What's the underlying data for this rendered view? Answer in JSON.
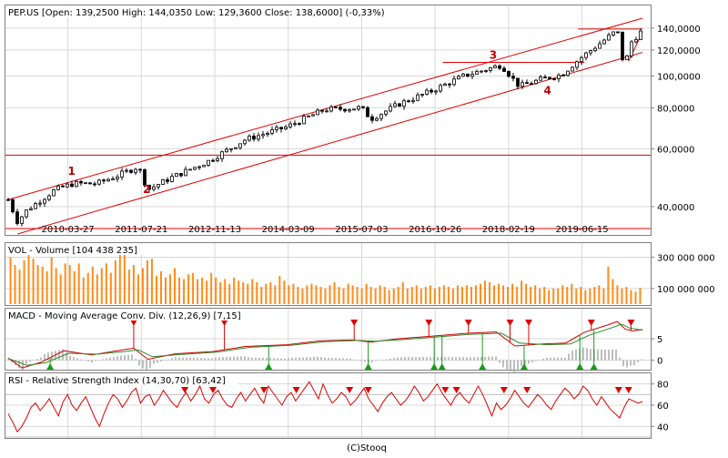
{
  "footer": "(C)Stooq",
  "colors": {
    "frame": "#808080",
    "grid": "#d8d8d8",
    "candle": "#000000",
    "trendline": "#e00000",
    "annotation": "#c00000",
    "volume": "#ff8c1a",
    "macd_line": "#d40000",
    "signal_line": "#2a8a2a",
    "histogram": "#a8a8a8",
    "up_marker": "#1a9a1a",
    "down_marker": "#e00000",
    "rsi_line": "#dd0000",
    "rsi_band": "#c0c0c0"
  },
  "chart_data": [
    {
      "type": "candlestick",
      "title": "PEP.US [Open: 139,2500  High: 144,0350  Low: 129,3600  Close: 138,6000] (-0,33%)",
      "ticker": "PEP.US",
      "ohlc_latest": {
        "open": 139.25,
        "high": 144.035,
        "low": 129.36,
        "close": 138.6,
        "change_pct": -0.33
      },
      "y_scale": "log",
      "ylim": [
        33,
        150
      ],
      "y_ticks": [
        40,
        60,
        80,
        100,
        120,
        140
      ],
      "y_tick_labels": [
        "40,0000",
        "60,0000",
        "80,0000",
        "100,0000",
        "120,0000",
        "140,0000"
      ],
      "x_range": [
        "2009-03-01",
        "2020-07-15"
      ],
      "x_ticks": [
        "2010-03-27",
        "2011-07-21",
        "2012-11-13",
        "2014-03-09",
        "2015-07-03",
        "2016-10-26",
        "2018-02-19",
        "2019-06-15"
      ],
      "grid": true,
      "price_anchors": [
        {
          "date": "2009-03-01",
          "value": 42
        },
        {
          "date": "2009-05-01",
          "value": 36
        },
        {
          "date": "2009-07-01",
          "value": 39
        },
        {
          "date": "2010-01-01",
          "value": 45
        },
        {
          "date": "2010-05-01",
          "value": 47
        },
        {
          "date": "2010-10-01",
          "value": 47
        },
        {
          "date": "2011-03-01",
          "value": 50
        },
        {
          "date": "2011-07-01",
          "value": 53
        },
        {
          "date": "2011-09-01",
          "value": 45
        },
        {
          "date": "2012-02-01",
          "value": 49
        },
        {
          "date": "2012-10-01",
          "value": 55
        },
        {
          "date": "2013-06-01",
          "value": 64
        },
        {
          "date": "2014-03-01",
          "value": 70
        },
        {
          "date": "2014-11-01",
          "value": 79
        },
        {
          "date": "2015-07-01",
          "value": 80
        },
        {
          "date": "2015-09-01",
          "value": 74
        },
        {
          "date": "2016-03-01",
          "value": 82
        },
        {
          "date": "2016-10-01",
          "value": 90
        },
        {
          "date": "2017-05-01",
          "value": 100
        },
        {
          "date": "2018-01-01",
          "value": 108
        },
        {
          "date": "2018-05-01",
          "value": 93
        },
        {
          "date": "2018-10-01",
          "value": 98
        },
        {
          "date": "2019-02-01",
          "value": 101
        },
        {
          "date": "2019-06-01",
          "value": 113
        },
        {
          "date": "2019-11-01",
          "value": 128
        },
        {
          "date": "2020-02-01",
          "value": 138
        },
        {
          "date": "2020-03-20",
          "value": 104
        },
        {
          "date": "2020-04-20",
          "value": 125
        },
        {
          "date": "2020-07-01",
          "value": 136
        }
      ],
      "channel_upper": [
        {
          "date": "2009-03-01",
          "value": 42
        },
        {
          "date": "2020-07-15",
          "value": 150
        }
      ],
      "channel_lower": [
        {
          "date": "2009-05-01",
          "value": 33
        },
        {
          "date": "2020-07-15",
          "value": 118
        }
      ],
      "horizontal_lines": [
        {
          "value": 34.3
        },
        {
          "value": 57.4
        },
        {
          "value": 110,
          "from": "2016-12-15",
          "to": "2019-07-01"
        },
        {
          "value": 139,
          "from": "2019-05-20",
          "to": "2020-07-15"
        }
      ],
      "minor_lines": [
        {
          "from": {
            "date": "2020-04-15",
            "value": 111
          },
          "to": {
            "date": "2020-07-15",
            "value": 136
          }
        }
      ],
      "annotations": [
        {
          "label": "1",
          "date": "2010-04-20",
          "value": 50
        },
        {
          "label": "2",
          "date": "2011-08-25",
          "value": 44
        },
        {
          "label": "3",
          "date": "2017-11-10",
          "value": 113
        },
        {
          "label": "4",
          "date": "2018-11-01",
          "value": 88
        }
      ]
    },
    {
      "type": "bar",
      "title": "VOL - Volume [104 438 235]",
      "latest": 104438235,
      "ylim": [
        0,
        390000000
      ],
      "y_ticks": [
        100000000,
        300000000
      ],
      "y_tick_labels": [
        "100 000 000",
        "300 000 000"
      ],
      "values": [
        300000000,
        250000000,
        220000000,
        280000000,
        320000000,
        290000000,
        250000000,
        240000000,
        210000000,
        300000000,
        230000000,
        190000000,
        260000000,
        250000000,
        210000000,
        260000000,
        170000000,
        200000000,
        240000000,
        190000000,
        230000000,
        260000000,
        200000000,
        280000000,
        380000000,
        330000000,
        220000000,
        250000000,
        190000000,
        230000000,
        280000000,
        290000000,
        180000000,
        210000000,
        170000000,
        190000000,
        230000000,
        170000000,
        160000000,
        190000000,
        200000000,
        160000000,
        170000000,
        150000000,
        200000000,
        170000000,
        140000000,
        160000000,
        130000000,
        170000000,
        150000000,
        140000000,
        130000000,
        160000000,
        140000000,
        110000000,
        130000000,
        140000000,
        120000000,
        180000000,
        150000000,
        120000000,
        130000000,
        110000000,
        100000000,
        120000000,
        130000000,
        120000000,
        110000000,
        100000000,
        120000000,
        140000000,
        110000000,
        100000000,
        130000000,
        120000000,
        110000000,
        100000000,
        130000000,
        110000000,
        100000000,
        120000000,
        110000000,
        90000000,
        100000000,
        110000000,
        140000000,
        100000000,
        110000000,
        120000000,
        100000000,
        110000000,
        120000000,
        100000000,
        110000000,
        120000000,
        110000000,
        100000000,
        120000000,
        110000000,
        120000000,
        110000000,
        120000000,
        130000000,
        150000000,
        140000000,
        120000000,
        130000000,
        120000000,
        110000000,
        130000000,
        110000000,
        150000000,
        130000000,
        110000000,
        120000000,
        100000000,
        110000000,
        90000000,
        100000000,
        100000000,
        120000000,
        110000000,
        130000000,
        100000000,
        110000000,
        90000000,
        100000000,
        110000000,
        120000000,
        100000000,
        240000000,
        160000000,
        120000000,
        100000000,
        110000000,
        90000000,
        80000000,
        104438235
      ]
    },
    {
      "type": "line",
      "title": "MACD - Moving Average Conv. Div. (12,26,9) [7,15]",
      "latest": 7.15,
      "ylim": [
        -2,
        12
      ],
      "y_ticks": [
        0,
        5
      ],
      "y_tick_labels": [
        "0",
        "5"
      ],
      "series": [
        {
          "name": "MACD",
          "points": [
            {
              "date": "2009-03-01",
              "value": 0.5
            },
            {
              "date": "2009-06-01",
              "value": -1.8
            },
            {
              "date": "2009-10-01",
              "value": -0.5
            },
            {
              "date": "2010-03-01",
              "value": 2.2
            },
            {
              "date": "2010-09-01",
              "value": 1.2
            },
            {
              "date": "2011-03-01",
              "value": 2.3
            },
            {
              "date": "2011-06-01",
              "value": 2.8
            },
            {
              "date": "2011-09-01",
              "value": 0.2
            },
            {
              "date": "2012-03-01",
              "value": 1.5
            },
            {
              "date": "2012-11-01",
              "value": 2.0
            },
            {
              "date": "2013-06-01",
              "value": 3.2
            },
            {
              "date": "2014-03-01",
              "value": 3.6
            },
            {
              "date": "2014-10-01",
              "value": 4.5
            },
            {
              "date": "2015-05-01",
              "value": 4.7
            },
            {
              "date": "2015-09-01",
              "value": 4.2
            },
            {
              "date": "2016-03-01",
              "value": 5.0
            },
            {
              "date": "2016-10-01",
              "value": 5.6
            },
            {
              "date": "2017-05-01",
              "value": 6.2
            },
            {
              "date": "2017-12-01",
              "value": 6.6
            },
            {
              "date": "2018-04-01",
              "value": 3.3
            },
            {
              "date": "2018-10-01",
              "value": 3.8
            },
            {
              "date": "2019-03-01",
              "value": 4.0
            },
            {
              "date": "2019-07-01",
              "value": 6.5
            },
            {
              "date": "2019-12-01",
              "value": 8.2
            },
            {
              "date": "2020-02-01",
              "value": 9.0
            },
            {
              "date": "2020-03-25",
              "value": 7.2
            },
            {
              "date": "2020-05-15",
              "value": 6.8
            },
            {
              "date": "2020-07-15",
              "value": 7.15
            }
          ]
        },
        {
          "name": "Signal",
          "points": [
            {
              "date": "2009-03-01",
              "value": 0.4
            },
            {
              "date": "2009-07-01",
              "value": -1.2
            },
            {
              "date": "2009-11-01",
              "value": -0.6
            },
            {
              "date": "2010-04-01",
              "value": 1.6
            },
            {
              "date": "2010-10-01",
              "value": 1.4
            },
            {
              "date": "2011-04-01",
              "value": 2.0
            },
            {
              "date": "2011-07-01",
              "value": 2.4
            },
            {
              "date": "2011-10-01",
              "value": 0.8
            },
            {
              "date": "2012-04-01",
              "value": 1.3
            },
            {
              "date": "2012-12-01",
              "value": 1.9
            },
            {
              "date": "2013-07-01",
              "value": 3.0
            },
            {
              "date": "2014-04-01",
              "value": 3.5
            },
            {
              "date": "2014-11-01",
              "value": 4.3
            },
            {
              "date": "2015-06-01",
              "value": 4.6
            },
            {
              "date": "2015-10-01",
              "value": 4.4
            },
            {
              "date": "2016-04-01",
              "value": 4.8
            },
            {
              "date": "2016-11-01",
              "value": 5.4
            },
            {
              "date": "2017-06-01",
              "value": 6.0
            },
            {
              "date": "2018-01-01",
              "value": 6.3
            },
            {
              "date": "2018-05-01",
              "value": 4.0
            },
            {
              "date": "2018-11-01",
              "value": 3.6
            },
            {
              "date": "2019-04-01",
              "value": 3.8
            },
            {
              "date": "2019-08-01",
              "value": 5.8
            },
            {
              "date": "2020-01-01",
              "value": 7.6
            },
            {
              "date": "2020-03-01",
              "value": 8.4
            },
            {
              "date": "2020-04-20",
              "value": 7.5
            },
            {
              "date": "2020-07-15",
              "value": 7.0
            }
          ]
        }
      ],
      "down_markers": [
        "2011-06-01",
        "2013-01-15",
        "2015-05-15",
        "2016-09-15",
        "2017-06-01",
        "2018-03-01",
        "2018-07-01",
        "2019-08-15",
        "2020-05-01"
      ],
      "up_markers": [
        "2009-12-01",
        "2013-11-01",
        "2015-08-15",
        "2016-10-20",
        "2016-12-10",
        "2017-09-01",
        "2018-06-01",
        "2019-06-01",
        "2019-09-01"
      ]
    },
    {
      "type": "line",
      "title": "RSI - Relative Strength Index (14,30,70) [63,42]",
      "latest": 63.42,
      "ylim": [
        30,
        90
      ],
      "y_ticks": [
        40,
        60,
        80
      ],
      "y_tick_labels": [
        "40",
        "60",
        "80"
      ],
      "bands": [
        30,
        70
      ],
      "values": [
        52,
        44,
        35,
        40,
        48,
        58,
        62,
        55,
        60,
        66,
        58,
        50,
        63,
        70,
        60,
        55,
        62,
        68,
        58,
        48,
        40,
        52,
        62,
        70,
        66,
        58,
        64,
        72,
        76,
        62,
        68,
        70,
        60,
        66,
        74,
        68,
        62,
        58,
        66,
        72,
        64,
        70,
        78,
        66,
        62,
        70,
        74,
        66,
        60,
        58,
        66,
        72,
        64,
        70,
        76,
        68,
        62,
        78,
        72,
        66,
        60,
        68,
        72,
        64,
        70,
        76,
        82,
        74,
        66,
        80,
        70,
        62,
        66,
        72,
        68,
        60,
        64,
        70,
        76,
        66,
        60,
        54,
        62,
        68,
        72,
        66,
        60,
        64,
        70,
        78,
        72,
        64,
        68,
        74,
        80,
        72,
        66,
        60,
        68,
        72,
        66,
        62,
        70,
        78,
        70,
        60,
        50,
        62,
        56,
        60,
        66,
        74,
        68,
        62,
        58,
        64,
        70,
        66,
        60,
        56,
        64,
        70,
        76,
        72,
        66,
        70,
        78,
        74,
        66,
        60,
        68,
        62,
        56,
        52,
        48,
        58,
        66,
        64,
        62,
        63.42
      ],
      "down_markers": [
        "2012-05-01",
        "2012-11-01",
        "2013-10-01",
        "2014-05-01",
        "2015-04-15",
        "2015-08-15",
        "2017-01-01",
        "2017-03-15",
        "2018-01-20",
        "2018-06-20",
        "2020-02-10",
        "2020-04-15"
      ]
    }
  ]
}
